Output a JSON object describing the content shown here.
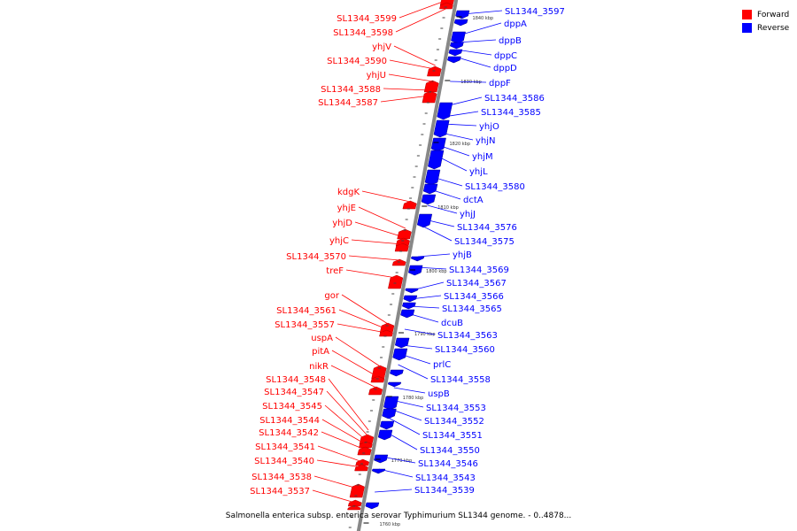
{
  "legend": {
    "forward_label": "Forward",
    "reverse_label": "Reverse"
  },
  "colors": {
    "forward": "#ff0000",
    "reverse": "#0000ff",
    "backbone": "#888888"
  },
  "caption": "Salmonella enterica subsp. enterica serovar Typhimurium SL1344 genome. - 0..4878...",
  "ticks": [
    "1840 kbp",
    "1830 kbp",
    "1820 kbp",
    "1810 kbp",
    "1800 kbp",
    "1790 kbp",
    "1780 kbp",
    "1770 kbp",
    "1760 kbp"
  ],
  "forward_genes": [
    "SL1344_3599",
    "SL1344_3598",
    "yhjV",
    "SL1344_3590",
    "yhjU",
    "SL1344_3588",
    "SL1344_3587",
    "kdgK",
    "yhjE",
    "yhjD",
    "yhjC",
    "SL1344_3570",
    "treF",
    "gor",
    "SL1344_3561",
    "SL1344_3557",
    "uspA",
    "pitA",
    "nikR",
    "SL1344_3548",
    "SL1344_3547",
    "SL1344_3545",
    "SL1344_3544",
    "SL1344_3542",
    "SL1344_3541",
    "SL1344_3540",
    "SL1344_3538",
    "SL1344_3537"
  ],
  "reverse_genes": [
    "SL1344_3597",
    "dppA",
    "dppB",
    "dppC",
    "dppD",
    "dppF",
    "SL1344_3586",
    "SL1344_3585",
    "yhjO",
    "yhjN",
    "yhjM",
    "yhjL",
    "SL1344_3580",
    "dctA",
    "yhjJ",
    "SL1344_3576",
    "SL1344_3575",
    "yhjB",
    "SL1344_3569",
    "SL1344_3567",
    "SL1344_3566",
    "SL1344_3565",
    "dcuB",
    "SL1344_3563",
    "SL1344_3560",
    "prlC",
    "SL1344_3558",
    "uspB",
    "SL1344_3553",
    "SL1344_3552",
    "SL1344_3551",
    "SL1344_3550",
    "SL1344_3546",
    "SL1344_3543",
    "SL1344_3539"
  ]
}
